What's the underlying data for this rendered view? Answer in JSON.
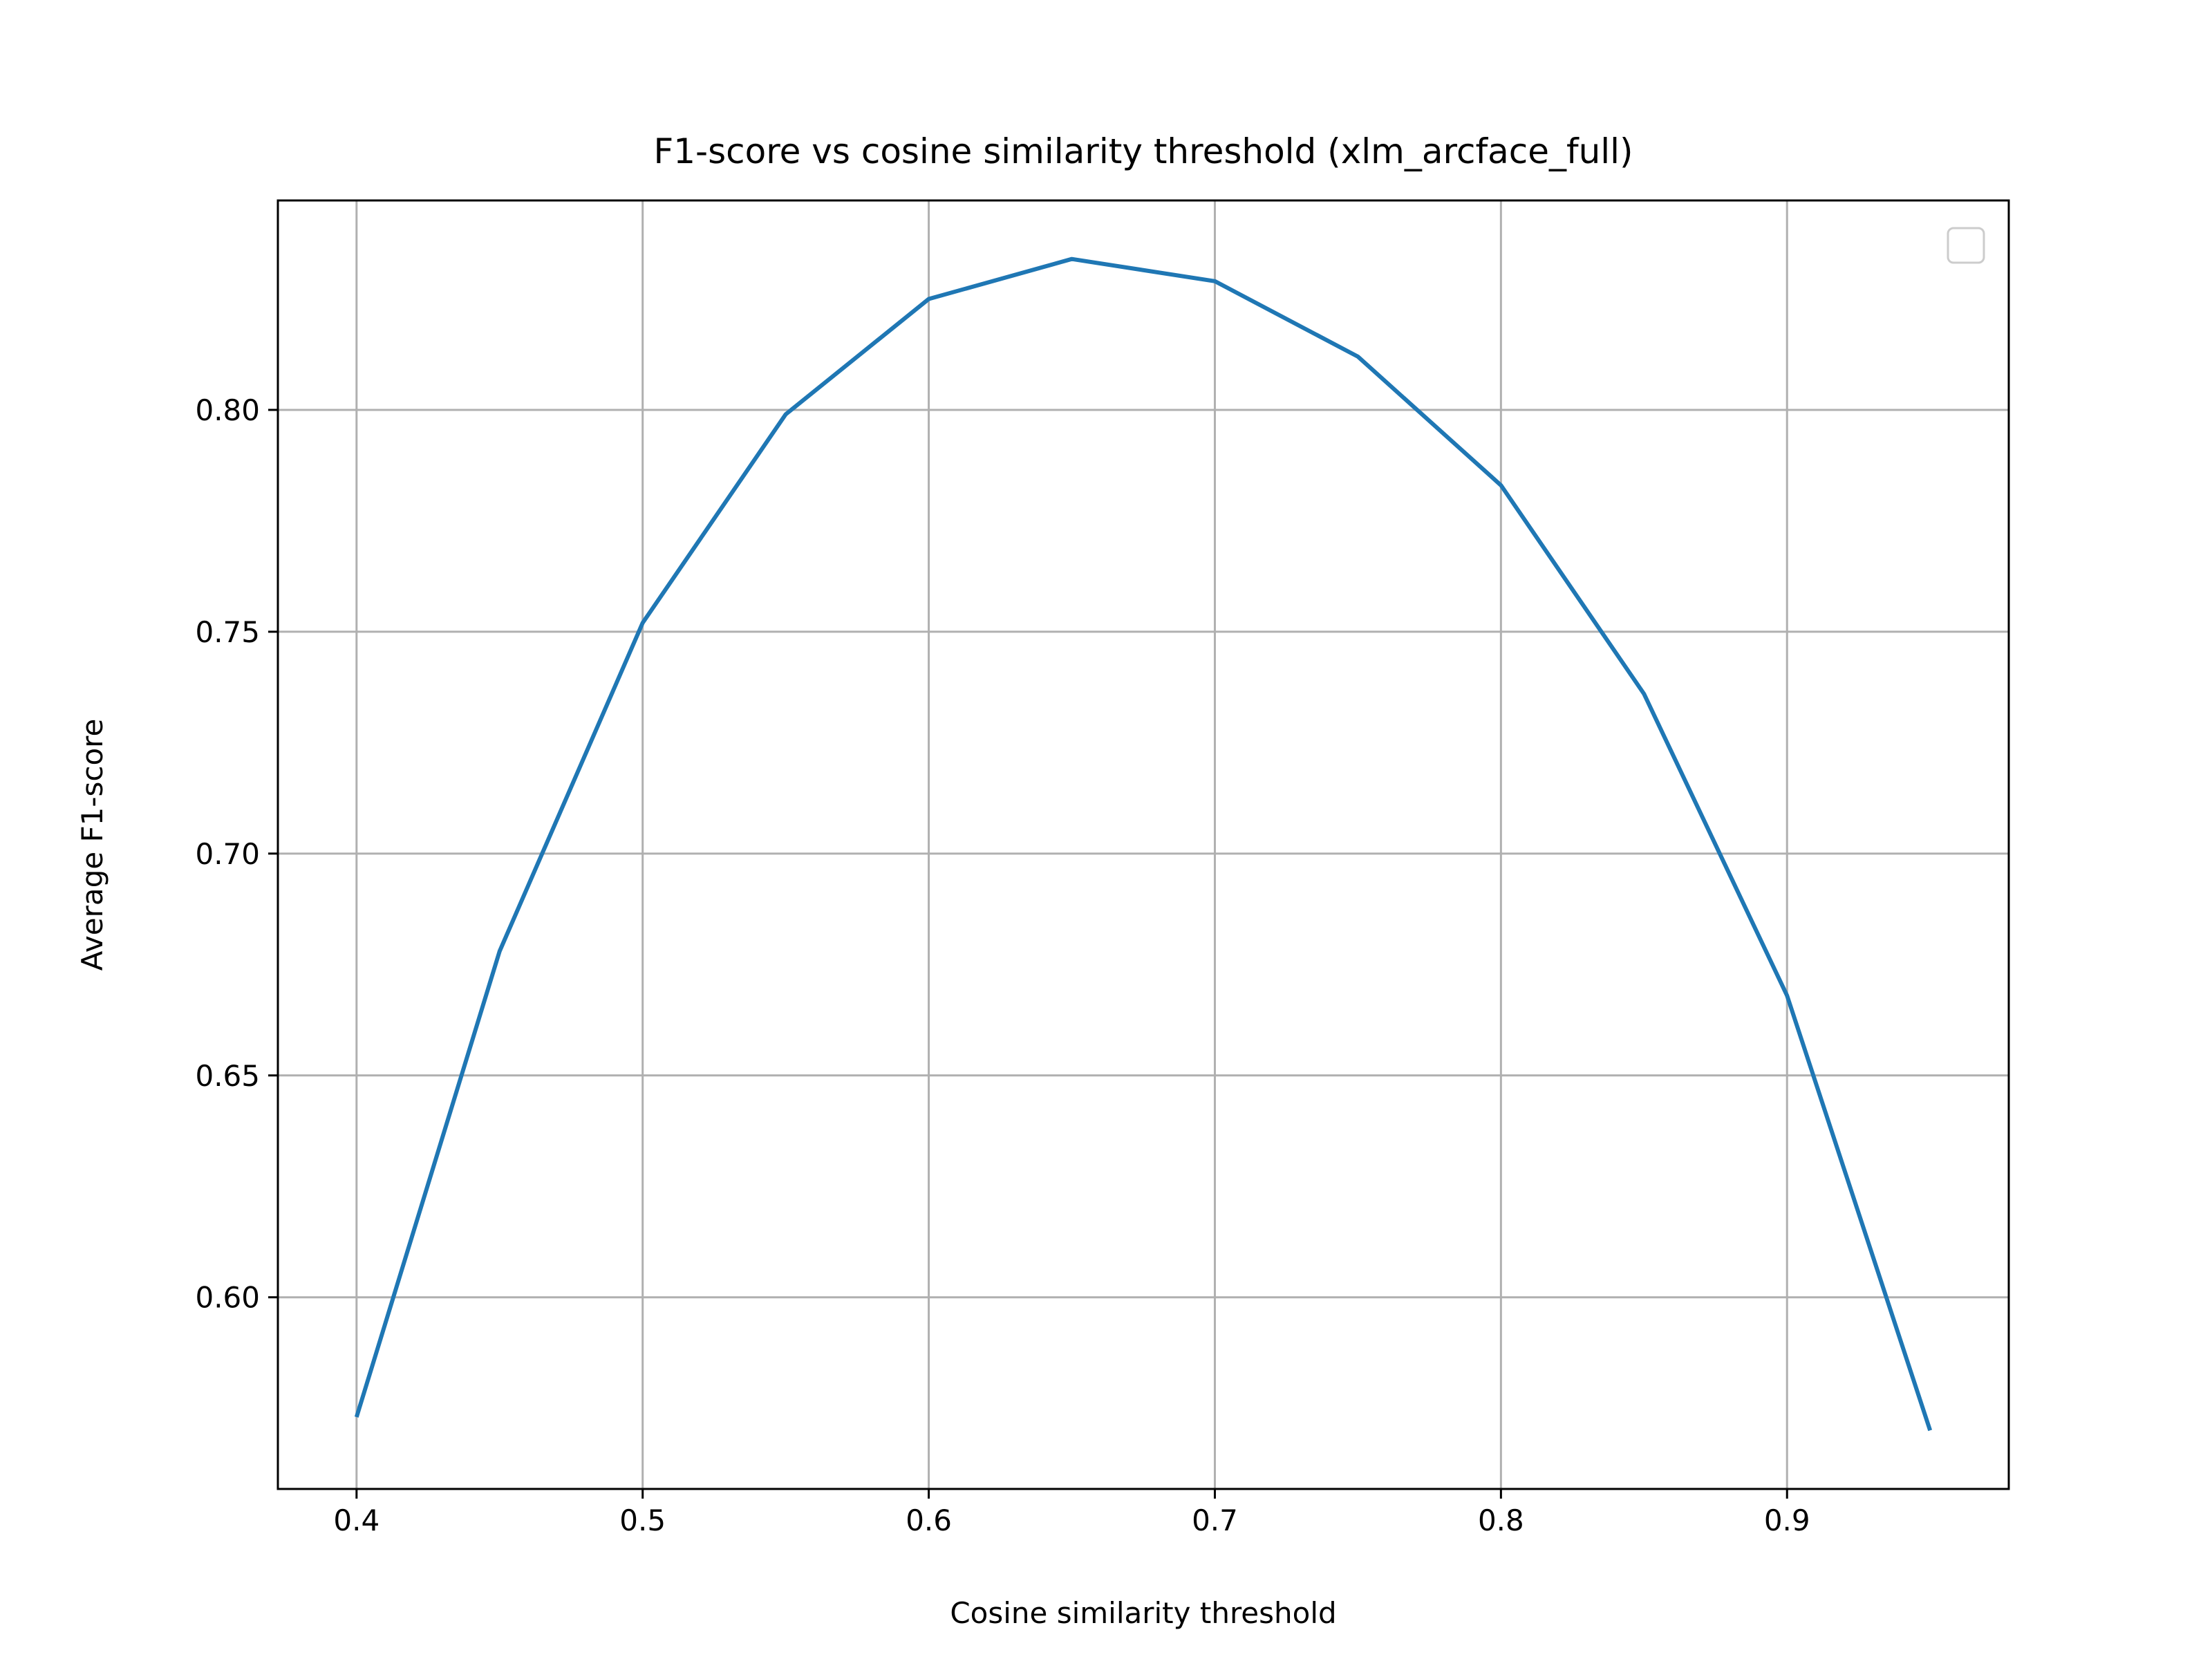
{
  "chart_data": {
    "type": "line",
    "title": "F1-score vs cosine similarity threshold (xlm_arcface_full)",
    "xlabel": "Cosine similarity threshold",
    "ylabel": "Average F1-score",
    "x": [
      0.4,
      0.45,
      0.5,
      0.55,
      0.6,
      0.65,
      0.7,
      0.75,
      0.8,
      0.85,
      0.9,
      0.95
    ],
    "series": [
      {
        "values": [
          0.573,
          0.678,
          0.752,
          0.799,
          0.825,
          0.834,
          0.829,
          0.812,
          0.783,
          0.736,
          0.668,
          0.57
        ],
        "color": "#1f77b4"
      }
    ],
    "xlim": [
      0.3725,
      0.9775
    ],
    "ylim": [
      0.5568,
      0.8472
    ],
    "xticks": [
      "0.4",
      "0.5",
      "0.6",
      "0.7",
      "0.8",
      "0.9"
    ],
    "yticks": [
      "0.60",
      "0.65",
      "0.70",
      "0.75",
      "0.80"
    ],
    "grid": true,
    "legend": "top-right",
    "legend_entries": []
  }
}
